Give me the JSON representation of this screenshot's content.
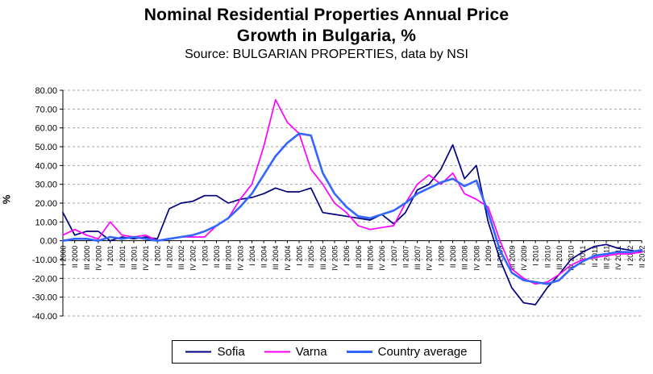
{
  "chart_data": {
    "type": "line",
    "title_line1": "Nominal Residential Properties Annual Price",
    "title_line2": "Growth in Bulgaria, %",
    "subtitle": "Source: BULGARIAN PROPERTIES, data by NSI",
    "ylabel": "%",
    "ylim": [
      -40,
      80
    ],
    "ytick": 10,
    "ytick_decimals": 2,
    "grid": true,
    "legend_position": "bottom",
    "categories": [
      "I 2000",
      "II 2000",
      "III 2000",
      "IV 2000",
      "I 2001",
      "II 2001",
      "III 2001",
      "IV 2001",
      "I 2002",
      "II 2002",
      "III 2002",
      "IV 2002",
      "I 2003",
      "II 2003",
      "III 2003",
      "IV 2003",
      "I 2004",
      "II 2004",
      "III 2004",
      "IV 2004",
      "I 2005",
      "II 2005",
      "III 2005",
      "IV 2005",
      "I 2006",
      "II 2006",
      "III 2006",
      "IV 2006",
      "I 2007",
      "II 2007",
      "III 2007",
      "IV 2007",
      "I 2008",
      "II 2008",
      "III 2008",
      "IV 2008",
      "I 2009",
      "II 2009",
      "III 2009",
      "IV 2009",
      "I 2010",
      "II 2010",
      "III 2010",
      "IV 2010",
      "I 2011",
      "II 2011",
      "III 2011",
      "IV 2011",
      "I 2012",
      "II 2012"
    ],
    "series": [
      {
        "name": "Sofia",
        "color": "#000080",
        "values": [
          15,
          3,
          5,
          5,
          0,
          2,
          1,
          2,
          1,
          17,
          20,
          21,
          24,
          24,
          20,
          22,
          23,
          25,
          28,
          26,
          26,
          28,
          15,
          14,
          13,
          12,
          11,
          14,
          9,
          15,
          27,
          30,
          38,
          51,
          33,
          40,
          10,
          -10,
          -25,
          -33,
          -34,
          -25,
          -18,
          -10,
          -6,
          -3,
          -2,
          -4,
          -5,
          -6
        ]
      },
      {
        "name": "Varna",
        "color": "#FF00FF",
        "values": [
          3,
          6,
          3,
          1,
          10,
          3,
          2,
          3,
          0,
          1,
          2,
          2,
          2,
          8,
          12,
          22,
          30,
          50,
          75,
          63,
          57,
          38,
          30,
          20,
          15,
          8,
          6,
          7,
          8,
          20,
          30,
          35,
          30,
          36,
          25,
          22,
          18,
          0,
          -15,
          -20,
          -23,
          -22,
          -18,
          -13,
          -10,
          -9,
          -8,
          -7,
          -7,
          -6
        ]
      },
      {
        "name": "Country average",
        "color": "#3366FF",
        "values": [
          0,
          1,
          1,
          0,
          2,
          1,
          2,
          1,
          0,
          1,
          2,
          3,
          5,
          8,
          12,
          18,
          25,
          35,
          45,
          52,
          57,
          56,
          36,
          25,
          18,
          13,
          12,
          14,
          16,
          20,
          25,
          28,
          31,
          33,
          29,
          32,
          15,
          -5,
          -17,
          -21,
          -22,
          -23,
          -21,
          -15,
          -11,
          -8,
          -7,
          -6,
          -6,
          -5
        ]
      }
    ]
  }
}
